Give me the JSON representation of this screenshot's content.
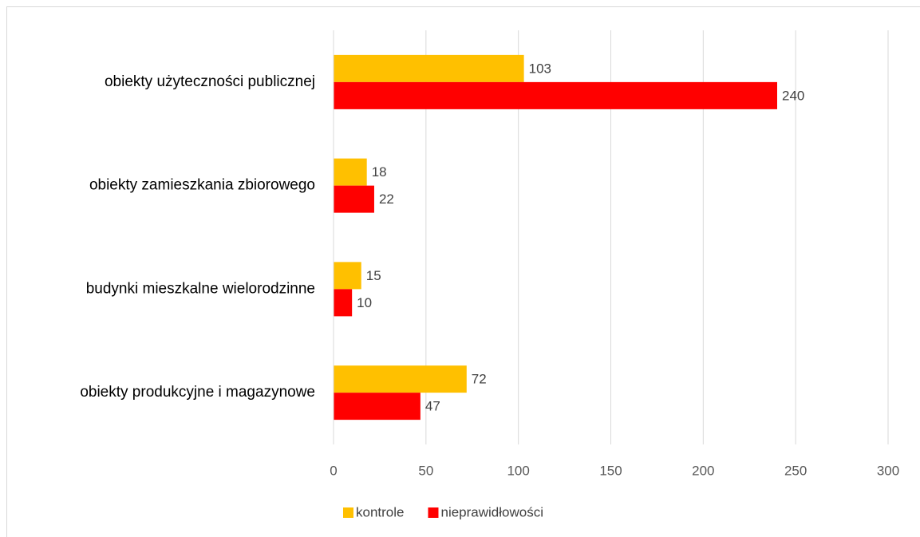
{
  "chart_data": {
    "type": "hbar",
    "categories": [
      "obiekty użyteczności publicznej",
      "obiekty zamieszkania zbiorowego",
      "budynki mieszkalne wielorodzinne",
      "obiekty produkcyjne i magazynowe"
    ],
    "series": [
      {
        "name": "kontrole",
        "color": "#FFC000",
        "values": [
          103,
          18,
          15,
          72
        ]
      },
      {
        "name": "nieprawidłowości",
        "color": "#FF0000",
        "values": [
          240,
          22,
          10,
          47
        ]
      }
    ],
    "xlim": [
      0,
      300
    ],
    "xticks": [
      0,
      50,
      100,
      150,
      200,
      250,
      300
    ],
    "grid": true,
    "legend": "bottom"
  }
}
